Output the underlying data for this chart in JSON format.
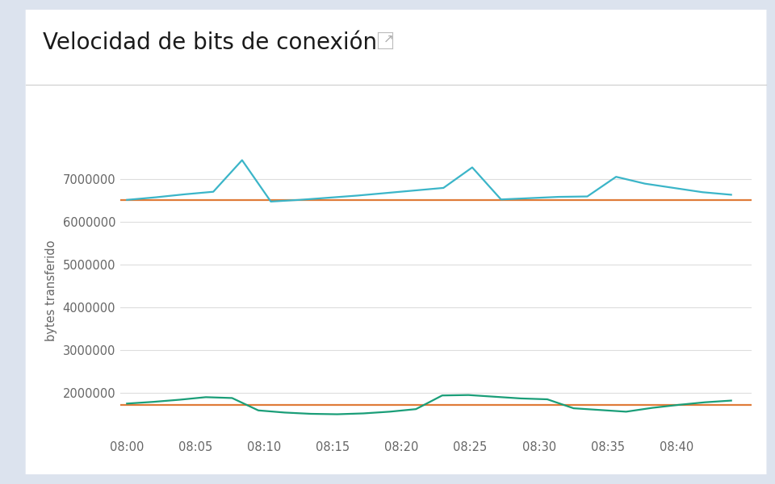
{
  "title": "Velocidad de bits de conexión",
  "ylabel": "bytes transferido",
  "background_outer": "#dce3ee",
  "background_inner": "#ffffff",
  "x_labels": [
    "08:00",
    "08:05",
    "08:10",
    "08:15",
    "08:20",
    "08:25",
    "08:30",
    "08:35",
    "08:40",
    ""
  ],
  "x_tick_positions": [
    0,
    5,
    10,
    15,
    20,
    25,
    30,
    35,
    40,
    44
  ],
  "egress_cyan": [
    6520000,
    6580000,
    6650000,
    6710000,
    7450000,
    6480000,
    6520000,
    6570000,
    6620000,
    6680000,
    6740000,
    6800000,
    7280000,
    6530000,
    6560000,
    6590000,
    6600000,
    7060000,
    6900000,
    6800000,
    6700000,
    6640000
  ],
  "egress_orange_val": 6510000,
  "ingress_teal": [
    1750000,
    1790000,
    1840000,
    1900000,
    1880000,
    1590000,
    1540000,
    1510000,
    1500000,
    1520000,
    1560000,
    1620000,
    1940000,
    1950000,
    1910000,
    1870000,
    1850000,
    1640000,
    1600000,
    1560000,
    1650000,
    1720000,
    1780000,
    1820000
  ],
  "ingress_orange_val": 1720000,
  "cyan_color": "#3bb5c8",
  "teal_color": "#1a9e78",
  "orange_color": "#e07b39",
  "ylim_min": 1000000,
  "ylim_max": 7800000,
  "yticks": [
    2000000,
    3000000,
    4000000,
    5000000,
    6000000,
    7000000
  ],
  "title_fontsize": 20,
  "tick_fontsize": 10.5,
  "ylabel_fontsize": 10.5,
  "grid_color": "#dddddd",
  "tick_color": "#666666",
  "separator_color": "#cccccc"
}
